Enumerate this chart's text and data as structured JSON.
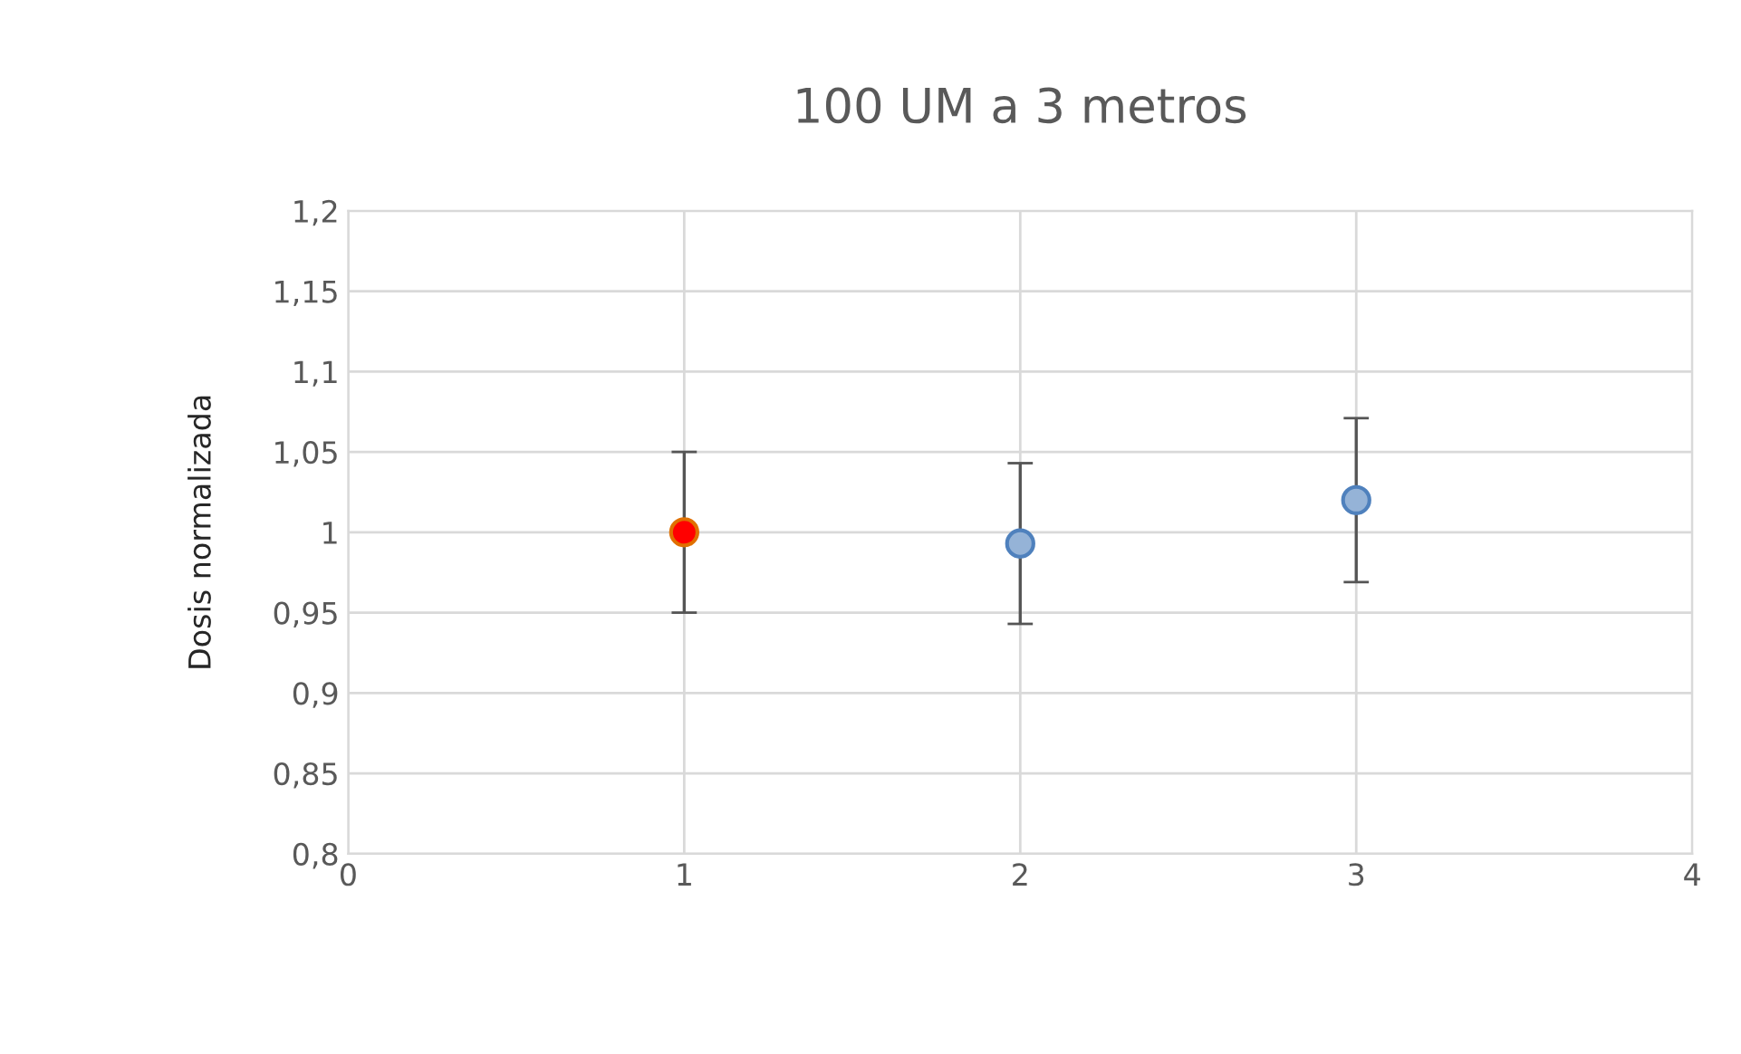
{
  "chart_data": {
    "type": "scatter",
    "title": "100 UM a 3 metros",
    "ylabel": "Dosis normalizada",
    "x": [
      1,
      2,
      3
    ],
    "values": [
      1.0,
      0.993,
      1.02
    ],
    "errors": [
      0.05,
      0.05,
      0.051
    ],
    "colors": [
      "#ff0000",
      "#95b3d7",
      "#95b3d7"
    ],
    "xlim": [
      0,
      4
    ],
    "xticks": [
      0,
      1,
      2,
      3,
      4
    ],
    "ylim": [
      0.8,
      1.2
    ],
    "yticks": [
      {
        "value": 0.8,
        "label": "0,8"
      },
      {
        "value": 0.85,
        "label": "0,85"
      },
      {
        "value": 0.9,
        "label": "0,9"
      },
      {
        "value": 0.95,
        "label": "0,95"
      },
      {
        "value": 1.0,
        "label": "1"
      },
      {
        "value": 1.05,
        "label": "1,05"
      },
      {
        "value": 1.1,
        "label": "1,1"
      },
      {
        "value": 1.15,
        "label": "1,15"
      },
      {
        "value": 1.2,
        "label": "1,2"
      }
    ],
    "grid": true,
    "marker": "circle",
    "legend": false
  }
}
